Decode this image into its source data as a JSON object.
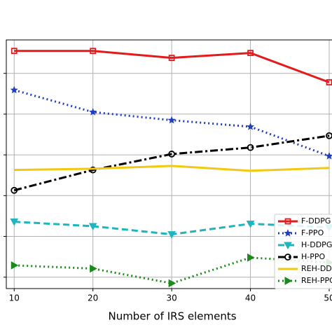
{
  "chart_data": {
    "type": "line",
    "x_label": "Number of IRS elements",
    "x": [
      10,
      20,
      30,
      40,
      50
    ],
    "xlim": [
      9,
      51
    ],
    "xticks": [
      10,
      20,
      30,
      40,
      50
    ],
    "ylim": [
      -0.28,
      5.82
    ],
    "yticks": [
      0,
      1,
      2,
      3,
      4,
      5
    ],
    "grid": true,
    "legend": "lower right",
    "series": [
      {
        "name": "F-DDPG",
        "color": "#e41a1c",
        "dash": "solid",
        "marker": "square",
        "values": [
          5.55,
          5.55,
          5.38,
          5.5,
          4.78
        ]
      },
      {
        "name": "F-PPO",
        "color": "#1f3fbf",
        "dash": "dotted",
        "marker": "star",
        "values": [
          4.59,
          4.05,
          3.85,
          3.69,
          2.97
        ]
      },
      {
        "name": "H-DDPG",
        "color": "#1fb5c0",
        "dash": "dashed",
        "marker": "triangle-down",
        "values": [
          1.36,
          1.25,
          1.05,
          1.31,
          1.22
        ]
      },
      {
        "name": "H-PPO",
        "color": "#000000",
        "dash": "dashdot",
        "marker": "circle",
        "values": [
          2.13,
          2.63,
          3.02,
          3.18,
          3.47
        ]
      },
      {
        "name": "REH-DDPG",
        "color": "#f2c811",
        "dash": "solid",
        "marker": "none",
        "values": [
          2.63,
          2.66,
          2.73,
          2.61,
          2.68
        ]
      },
      {
        "name": "REH-PPO",
        "color": "#1a8a1a",
        "dash": "dotted",
        "marker": "triangle-right",
        "values": [
          0.29,
          0.21,
          -0.15,
          0.48,
          0.36
        ]
      }
    ]
  }
}
